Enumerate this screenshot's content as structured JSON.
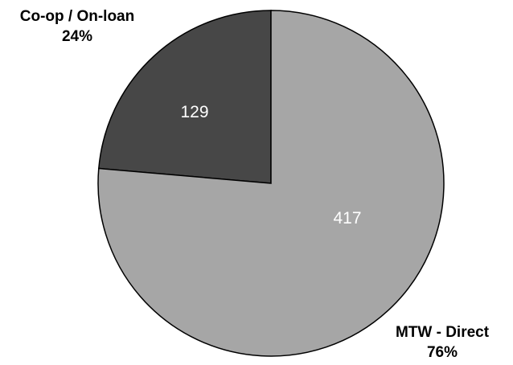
{
  "chart_data": {
    "type": "pie",
    "start_angle_deg": 0,
    "direction": "counterclockwise",
    "slice_border_color": "#000000",
    "slices": [
      {
        "label": "Co-op / On-loan",
        "value": 129,
        "value_label": "129",
        "percent": 24,
        "percent_label": "24%",
        "color": "#474747"
      },
      {
        "label": "MTW - Direct",
        "value": 417,
        "value_label": "417",
        "percent": 76,
        "percent_label": "76%",
        "color": "#a6a6a6"
      }
    ]
  }
}
